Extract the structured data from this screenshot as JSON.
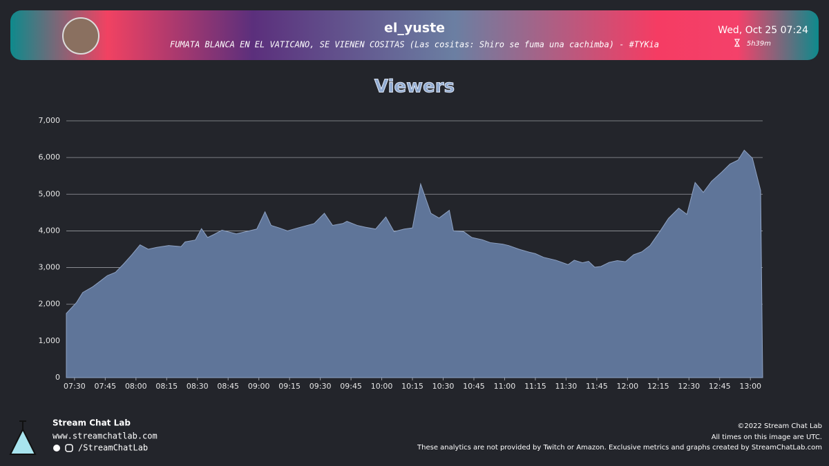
{
  "header": {
    "channel": "el_yuste",
    "stream_title": "FUMATA BLANCA EN EL VATICANO, SE VIENEN COSITAS (Las cositas: Shiro se fuma una cachimba) - #TYKia",
    "date": "Wed, Oct 25 07:24",
    "duration": "5h39m"
  },
  "footer": {
    "brand": "Stream Chat Lab",
    "website": "www.streamchatlab.com",
    "social": "/StreamChatLab",
    "copyright": "©2022 Stream Chat Lab",
    "timezone_note": "All times on this image are UTC.",
    "disclaimer": "These analytics are not provided by Twitch or Amazon. Exclusive metrics and graphs created by StreamChatLab.com"
  },
  "chart_data": {
    "type": "area",
    "title": "Viewers",
    "color": "#5f7599",
    "x": [
      446,
      451,
      454,
      459,
      463,
      466,
      470,
      474,
      478,
      482,
      486,
      490,
      496,
      502,
      504,
      509,
      512,
      515,
      518,
      522,
      529,
      533,
      539,
      543,
      546,
      550,
      554,
      559,
      567,
      572,
      576,
      581,
      583,
      588,
      592,
      597,
      602,
      606,
      611,
      615,
      619,
      624,
      628,
      633,
      635,
      640,
      644,
      649,
      653,
      659,
      662,
      667,
      672,
      675,
      679,
      685,
      690,
      691,
      694,
      698,
      701,
      704,
      707,
      711,
      715,
      719,
      723,
      727,
      731,
      736,
      740,
      745,
      749,
      753,
      757,
      761,
      766,
      770,
      774,
      777,
      781,
      785,
      786
    ],
    "values": [
      1750,
      2050,
      2320,
      2480,
      2650,
      2780,
      2870,
      3100,
      3350,
      3620,
      3500,
      3550,
      3600,
      3570,
      3700,
      3750,
      4060,
      3820,
      3900,
      4020,
      3920,
      3970,
      4050,
      4520,
      4150,
      4080,
      4000,
      4080,
      4200,
      4480,
      4150,
      4200,
      4260,
      4150,
      4100,
      4050,
      4380,
      3980,
      4050,
      4080,
      5280,
      4480,
      4350,
      4560,
      4000,
      3980,
      3820,
      3760,
      3680,
      3640,
      3600,
      3500,
      3420,
      3380,
      3280,
      3200,
      3100,
      3080,
      3200,
      3130,
      3170,
      3010,
      3030,
      3140,
      3190,
      3160,
      3350,
      3430,
      3600,
      4000,
      4340,
      4620,
      4450,
      5320,
      5050,
      5350,
      5600,
      5820,
      5930,
      6200,
      5980,
      5100,
      0
    ],
    "xlim": [
      446,
      786
    ],
    "xticks": [
      {
        "value": 450,
        "label": "07:30"
      },
      {
        "value": 465,
        "label": "07:45"
      },
      {
        "value": 480,
        "label": "08:00"
      },
      {
        "value": 495,
        "label": "08:15"
      },
      {
        "value": 510,
        "label": "08:30"
      },
      {
        "value": 525,
        "label": "08:45"
      },
      {
        "value": 540,
        "label": "09:00"
      },
      {
        "value": 555,
        "label": "09:15"
      },
      {
        "value": 570,
        "label": "09:30"
      },
      {
        "value": 585,
        "label": "09:45"
      },
      {
        "value": 600,
        "label": "10:00"
      },
      {
        "value": 615,
        "label": "10:15"
      },
      {
        "value": 630,
        "label": "10:30"
      },
      {
        "value": 645,
        "label": "10:45"
      },
      {
        "value": 660,
        "label": "11:00"
      },
      {
        "value": 675,
        "label": "11:15"
      },
      {
        "value": 690,
        "label": "11:30"
      },
      {
        "value": 705,
        "label": "11:45"
      },
      {
        "value": 720,
        "label": "12:00"
      },
      {
        "value": 735,
        "label": "12:15"
      },
      {
        "value": 750,
        "label": "12:30"
      },
      {
        "value": 765,
        "label": "12:45"
      },
      {
        "value": 780,
        "label": "13:00"
      }
    ],
    "ylim": [
      0,
      7000
    ],
    "yticks": [
      0,
      {
        "value": 1000,
        "label": "1,000"
      },
      {
        "value": 2000,
        "label": "2,000"
      },
      {
        "value": 3000,
        "label": "3,000"
      },
      {
        "value": 4000,
        "label": "4,000"
      },
      {
        "value": 5000,
        "label": "5,000"
      },
      {
        "value": 6000,
        "label": "6,000"
      },
      {
        "value": 7000,
        "label": "7,000"
      }
    ],
    "grid": true
  }
}
